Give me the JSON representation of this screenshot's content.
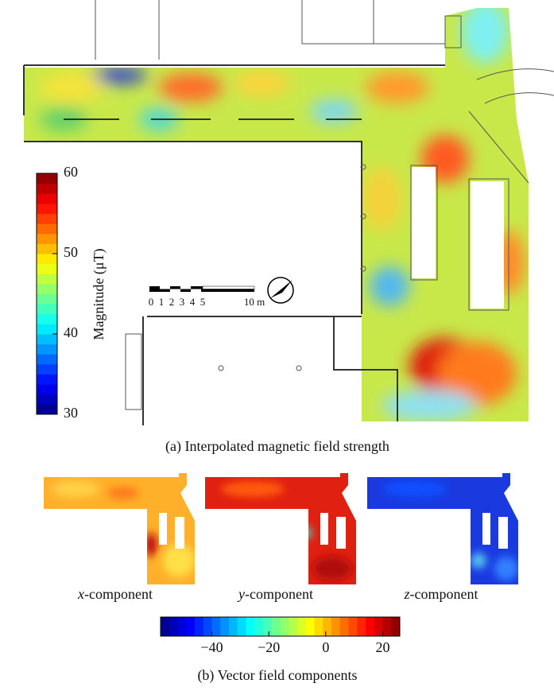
{
  "figure_a": {
    "colorbar": {
      "label": "Magnitude (μT)",
      "range": [
        30,
        60
      ],
      "ticks": [
        30,
        40,
        50,
        60
      ]
    },
    "scale_bar": {
      "labels": [
        "0",
        "1",
        "2",
        "3",
        "4",
        "5",
        "10 m"
      ]
    },
    "caption": "(a) Interpolated magnetic field strength"
  },
  "figure_b": {
    "panels": [
      {
        "symbol": "x",
        "label": "-component"
      },
      {
        "symbol": "y",
        "label": "-component"
      },
      {
        "symbol": "z",
        "label": "-component"
      }
    ],
    "colorbar": {
      "range": [
        -58,
        26
      ],
      "ticks": [
        {
          "value": -40,
          "label": "−40"
        },
        {
          "value": -20,
          "label": "−20"
        },
        0,
        20
      ]
    },
    "caption": "(b) Vector field components"
  }
}
